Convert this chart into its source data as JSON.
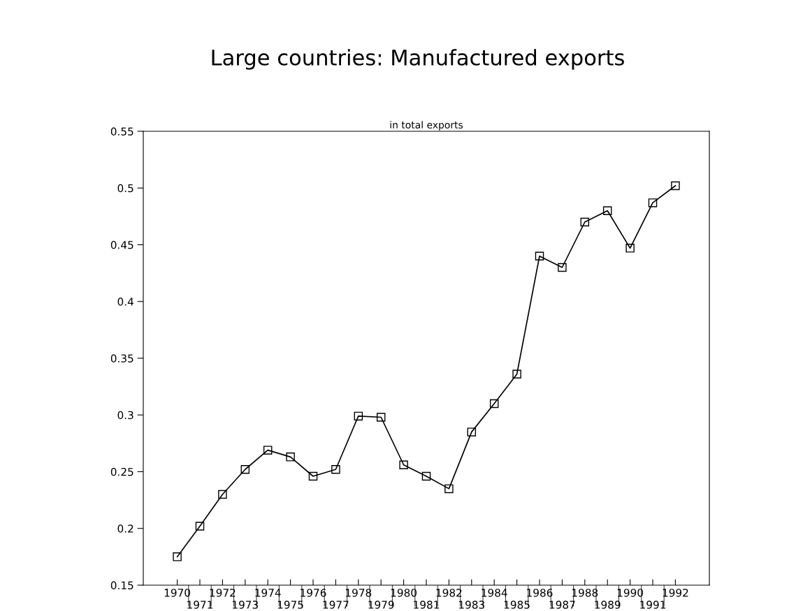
{
  "chart_data": {
    "type": "line",
    "title": "Large countries: Manufactured exports",
    "subtitle": "in total exports",
    "categories": [
      "1970",
      "1971",
      "1972",
      "1973",
      "1974",
      "1975",
      "1976",
      "1977",
      "1978",
      "1979",
      "1980",
      "1981",
      "1982",
      "1983",
      "1984",
      "1985",
      "1986",
      "1987",
      "1988",
      "1989",
      "1990",
      "1991",
      "1992"
    ],
    "series": [
      {
        "color": "#000000",
        "values": [
          0.175,
          0.202,
          0.23,
          0.252,
          0.269,
          0.263,
          0.246,
          0.252,
          0.299,
          0.298,
          0.256,
          0.246,
          0.235,
          0.285,
          0.31,
          0.336,
          0.44,
          0.43,
          0.47,
          0.48,
          0.447,
          0.487,
          0.502
        ]
      }
    ],
    "ylim": [
      0.15,
      0.55
    ],
    "yticks": [
      0.15,
      0.2,
      0.25,
      0.3,
      0.35,
      0.4,
      0.45,
      0.5,
      0.55
    ],
    "marker": "square",
    "line_style": "solid",
    "grid": false,
    "legend": false
  }
}
